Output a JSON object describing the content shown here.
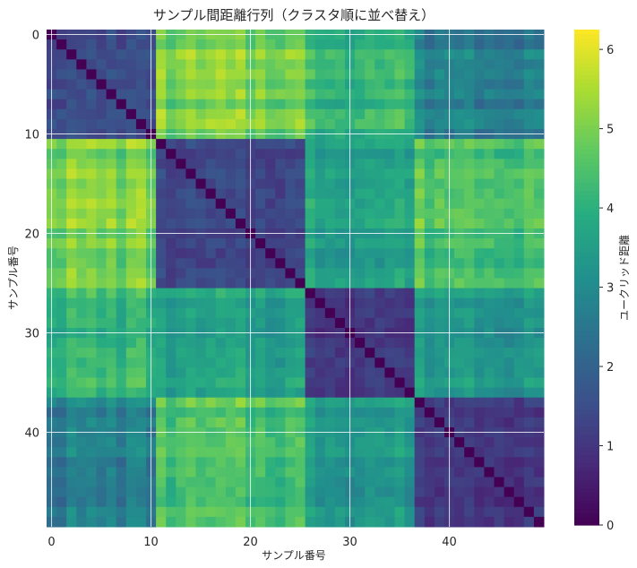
{
  "chart_data": {
    "type": "heatmap",
    "title": "サンプル間距離行列（クラスタ順に並べ替え）",
    "xlabel": "サンプル番号",
    "ylabel": "サンプル番号",
    "colorbar_label": "ユークリッド距離",
    "n": 50,
    "clusters": [
      {
        "start": 0,
        "end": 11
      },
      {
        "start": 11,
        "end": 26
      },
      {
        "start": 26,
        "end": 37
      },
      {
        "start": 37,
        "end": 50
      }
    ],
    "block_mean_distance": [
      [
        1.5,
        5.0,
        4.2,
        2.8
      ],
      [
        5.0,
        1.3,
        3.6,
        4.5
      ],
      [
        4.2,
        3.6,
        1.1,
        3.5
      ],
      [
        2.8,
        4.5,
        3.5,
        1.1
      ]
    ],
    "x_ticks": [
      0,
      10,
      20,
      30,
      40
    ],
    "y_ticks": [
      0,
      10,
      20,
      30,
      40
    ],
    "colorbar_ticks": [
      0,
      1,
      2,
      3,
      4,
      5,
      6
    ],
    "value_range": [
      0,
      6.25
    ],
    "colormap": "viridis",
    "grid": true,
    "grid_color": "#ffffff"
  }
}
